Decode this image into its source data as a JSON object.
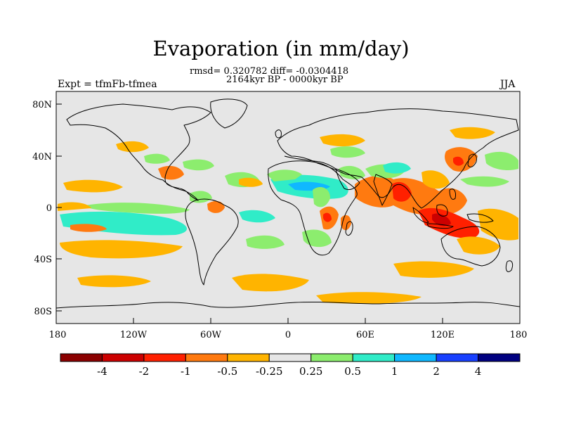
{
  "title": "Evaporation (in mm/day)",
  "stats": "rmsd= 0.320782 diff= -0.0304418",
  "period": "2164kyr BP - 0000kyr BP",
  "experiment": "Expt = tfmFb-tfmea",
  "season": "JJA",
  "map": {
    "lat_ticks": [
      "80N",
      "40N",
      "0",
      "40S",
      "80S"
    ],
    "lon_ticks": [
      "180",
      "120W",
      "60W",
      "0",
      "60E",
      "120E",
      "180"
    ],
    "ocean_color": "#e6e6e6"
  },
  "colorbar": {
    "labels": [
      "-4",
      "-2",
      "-1",
      "-0.5",
      "-0.25",
      "0.25",
      "0.5",
      "1",
      "2",
      "4"
    ],
    "colors": [
      "#8b0000",
      "#cc0000",
      "#ff2000",
      "#ff7a10",
      "#ffb400",
      "#e6e6e6",
      "#8ced6e",
      "#30ecc8",
      "#10b8ff",
      "#1840ff",
      "#000080"
    ]
  }
}
